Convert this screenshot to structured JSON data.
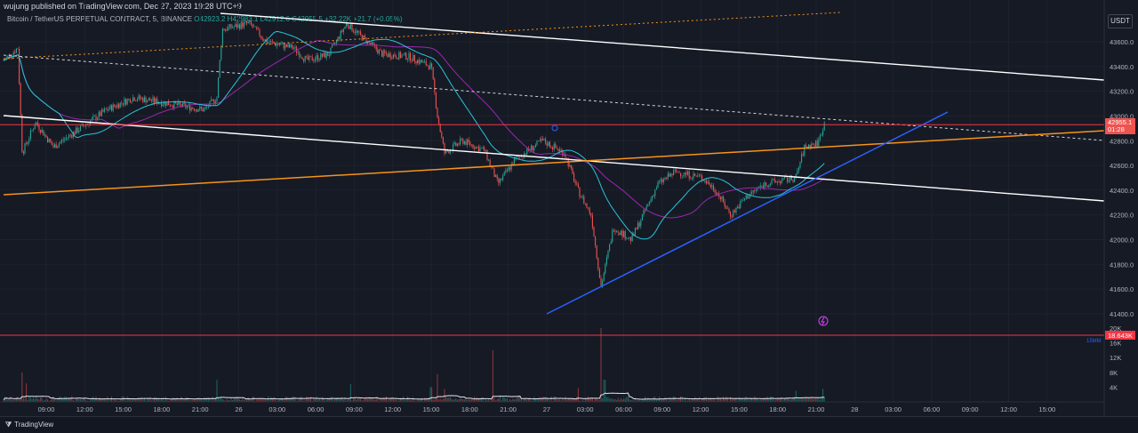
{
  "header": {
    "published": "wujung published on TradingView.com, Dec 27, 2023 19:28 UTC+9",
    "symbol": "Bitcoin / TetherUS PERPETUAL CONTRACT, 5, BINANCE",
    "ohlc": "O42923.2 H42983.1 L42912.6 C42955.5",
    "change": "+32.22K +21.7 (+0.05%)"
  },
  "unit_label": "USDT",
  "footer": {
    "logo": "TradingView"
  },
  "chart_data": {
    "type": "candlestick",
    "price_axis": {
      "ticks": [
        "43600.0",
        "43400.0",
        "43200.0",
        "43000.0",
        "42800.0",
        "42600.0",
        "42400.0",
        "42200.0",
        "42000.0",
        "41800.0",
        "41600.0",
        "41400.0"
      ],
      "range": [
        41250,
        43850
      ]
    },
    "volume_axis": {
      "ticks": [
        "16K",
        "12K",
        "8K",
        "4K"
      ],
      "top_label": "20K",
      "range": [
        0,
        20000
      ]
    },
    "time_axis": [
      "09:00",
      "12:00",
      "15:00",
      "18:00",
      "21:00",
      "26",
      "03:00",
      "06:00",
      "09:00",
      "12:00",
      "15:00",
      "18:00",
      "21:00",
      "27",
      "03:00",
      "06:00",
      "09:00",
      "12:00",
      "15:00",
      "18:00",
      "21:00",
      "28",
      "03:00",
      "06:00",
      "09:00",
      "12:00",
      "15:00"
    ],
    "last_price": {
      "value": "42955.1",
      "countdown": "01:28"
    },
    "horizontal_line_price": 42930,
    "volume_line_value": "18.643K",
    "volume_ma_label": "15MM",
    "colors": {
      "up": "#26a69a",
      "down": "#ef5350",
      "white_line": "#ffffff",
      "orange_line": "#f7931a",
      "blue_line": "#2962ff",
      "red_line": "#f23645",
      "ema": "#26c6da",
      "ma": "#9c27b0"
    }
  }
}
